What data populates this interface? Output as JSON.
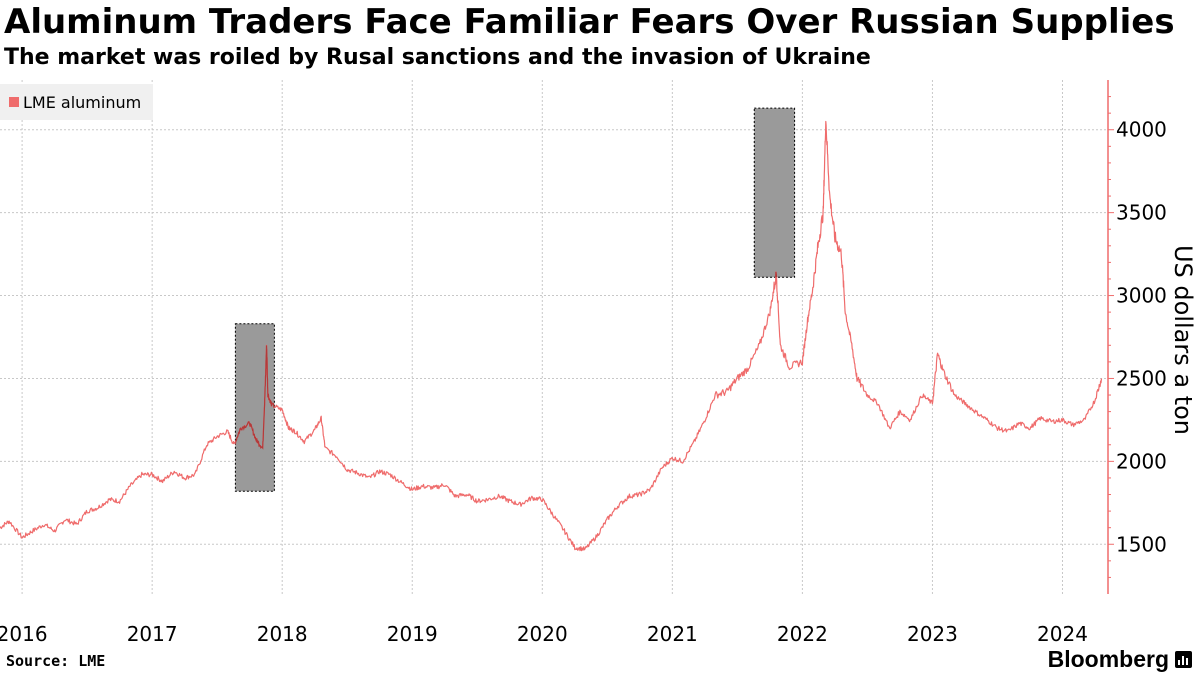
{
  "title": "Aluminum Traders Face Familiar Fears Over Russian Supplies",
  "subtitle": "The market was roiled by Rusal sanctions and the invasion of Ukraine",
  "source": "Source: LME",
  "brand": "Bloomberg",
  "brand_icon": "bloomberg-chart-icon",
  "colors": {
    "line": "#ef6c6c",
    "highlight": "#9a9a9a",
    "axis": "#ef6c6c",
    "grid": "#c8c8c8"
  },
  "chart_data": {
    "type": "line",
    "title": "Aluminum Traders Face Familiar Fears Over Russian Supplies",
    "ylabel": "US dollars a ton",
    "xlabel": "",
    "ylim": [
      1200,
      4300
    ],
    "xlim": [
      2015.83,
      2024.35
    ],
    "y_ticks": [
      1500,
      2000,
      2500,
      3000,
      3500,
      4000
    ],
    "x_ticks": [
      {
        "label": "2016",
        "x": 2016.0
      },
      {
        "label": "2017",
        "x": 2017.0
      },
      {
        "label": "2018",
        "x": 2018.0
      },
      {
        "label": "2019",
        "x": 2019.0
      },
      {
        "label": "2020",
        "x": 2020.0
      },
      {
        "label": "2021",
        "x": 2021.0
      },
      {
        "label": "2022",
        "x": 2022.0
      },
      {
        "label": "2023",
        "x": 2023.0
      },
      {
        "label": "2024",
        "x": 2024.0
      }
    ],
    "grid_x_dates": [
      2016.0,
      2017.0,
      2018.0,
      2019.0,
      2020.0,
      2021.0,
      2022.0,
      2023.0,
      2024.0
    ],
    "legend": [
      "LME aluminum"
    ],
    "legend_position": "top-left",
    "highlights": [
      {
        "x0": 2017.64,
        "x1": 2017.94,
        "y0": 1820,
        "y1": 2830
      },
      {
        "x0": 2021.63,
        "x1": 2021.94,
        "y0": 3110,
        "y1": 4130
      }
    ],
    "series": [
      {
        "name": "LME aluminum",
        "points": [
          [
            2015.83,
            1600
          ],
          [
            2015.9,
            1640
          ],
          [
            2016.0,
            1540
          ],
          [
            2016.08,
            1580
          ],
          [
            2016.17,
            1620
          ],
          [
            2016.25,
            1580
          ],
          [
            2016.33,
            1650
          ],
          [
            2016.42,
            1620
          ],
          [
            2016.5,
            1700
          ],
          [
            2016.58,
            1720
          ],
          [
            2016.67,
            1770
          ],
          [
            2016.75,
            1760
          ],
          [
            2016.83,
            1850
          ],
          [
            2016.92,
            1920
          ],
          [
            2017.0,
            1920
          ],
          [
            2017.08,
            1880
          ],
          [
            2017.17,
            1940
          ],
          [
            2017.25,
            1900
          ],
          [
            2017.33,
            1920
          ],
          [
            2017.42,
            2100
          ],
          [
            2017.5,
            2150
          ],
          [
            2017.58,
            2180
          ],
          [
            2017.63,
            2100
          ],
          [
            2017.68,
            2200
          ],
          [
            2017.75,
            2230
          ],
          [
            2017.8,
            2130
          ],
          [
            2017.85,
            2080
          ],
          [
            2017.87,
            2460
          ],
          [
            2017.88,
            2700
          ],
          [
            2017.89,
            2400
          ],
          [
            2017.92,
            2340
          ],
          [
            2018.0,
            2310
          ],
          [
            2018.05,
            2200
          ],
          [
            2018.1,
            2180
          ],
          [
            2018.17,
            2120
          ],
          [
            2018.25,
            2190
          ],
          [
            2018.3,
            2260
          ],
          [
            2018.33,
            2080
          ],
          [
            2018.42,
            2030
          ],
          [
            2018.5,
            1950
          ],
          [
            2018.58,
            1930
          ],
          [
            2018.67,
            1900
          ],
          [
            2018.75,
            1940
          ],
          [
            2018.83,
            1920
          ],
          [
            2018.92,
            1870
          ],
          [
            2019.0,
            1830
          ],
          [
            2019.08,
            1850
          ],
          [
            2019.17,
            1840
          ],
          [
            2019.25,
            1860
          ],
          [
            2019.33,
            1790
          ],
          [
            2019.42,
            1800
          ],
          [
            2019.5,
            1760
          ],
          [
            2019.58,
            1770
          ],
          [
            2019.67,
            1790
          ],
          [
            2019.75,
            1760
          ],
          [
            2019.83,
            1740
          ],
          [
            2019.92,
            1780
          ],
          [
            2020.0,
            1770
          ],
          [
            2020.08,
            1680
          ],
          [
            2020.17,
            1580
          ],
          [
            2020.25,
            1480
          ],
          [
            2020.33,
            1470
          ],
          [
            2020.42,
            1550
          ],
          [
            2020.5,
            1650
          ],
          [
            2020.58,
            1730
          ],
          [
            2020.67,
            1790
          ],
          [
            2020.75,
            1800
          ],
          [
            2020.83,
            1830
          ],
          [
            2020.92,
            1960
          ],
          [
            2021.0,
            2020
          ],
          [
            2021.08,
            2000
          ],
          [
            2021.17,
            2120
          ],
          [
            2021.25,
            2250
          ],
          [
            2021.33,
            2400
          ],
          [
            2021.42,
            2420
          ],
          [
            2021.5,
            2500
          ],
          [
            2021.58,
            2560
          ],
          [
            2021.67,
            2700
          ],
          [
            2021.75,
            2900
          ],
          [
            2021.8,
            3130
          ],
          [
            2021.83,
            2700
          ],
          [
            2021.9,
            2570
          ],
          [
            2022.0,
            2600
          ],
          [
            2022.04,
            2850
          ],
          [
            2022.08,
            3050
          ],
          [
            2022.12,
            3300
          ],
          [
            2022.16,
            3500
          ],
          [
            2022.18,
            4060
          ],
          [
            2022.21,
            3600
          ],
          [
            2022.25,
            3350
          ],
          [
            2022.3,
            3250
          ],
          [
            2022.33,
            2900
          ],
          [
            2022.38,
            2700
          ],
          [
            2022.42,
            2500
          ],
          [
            2022.5,
            2400
          ],
          [
            2022.58,
            2350
          ],
          [
            2022.67,
            2200
          ],
          [
            2022.75,
            2300
          ],
          [
            2022.83,
            2250
          ],
          [
            2022.92,
            2400
          ],
          [
            2023.0,
            2350
          ],
          [
            2023.04,
            2650
          ],
          [
            2023.08,
            2550
          ],
          [
            2023.17,
            2400
          ],
          [
            2023.25,
            2350
          ],
          [
            2023.33,
            2300
          ],
          [
            2023.42,
            2250
          ],
          [
            2023.5,
            2200
          ],
          [
            2023.58,
            2180
          ],
          [
            2023.67,
            2230
          ],
          [
            2023.75,
            2200
          ],
          [
            2023.83,
            2260
          ],
          [
            2023.92,
            2240
          ],
          [
            2024.0,
            2250
          ],
          [
            2024.08,
            2220
          ],
          [
            2024.17,
            2250
          ],
          [
            2024.25,
            2370
          ],
          [
            2024.3,
            2500
          ]
        ]
      }
    ]
  }
}
